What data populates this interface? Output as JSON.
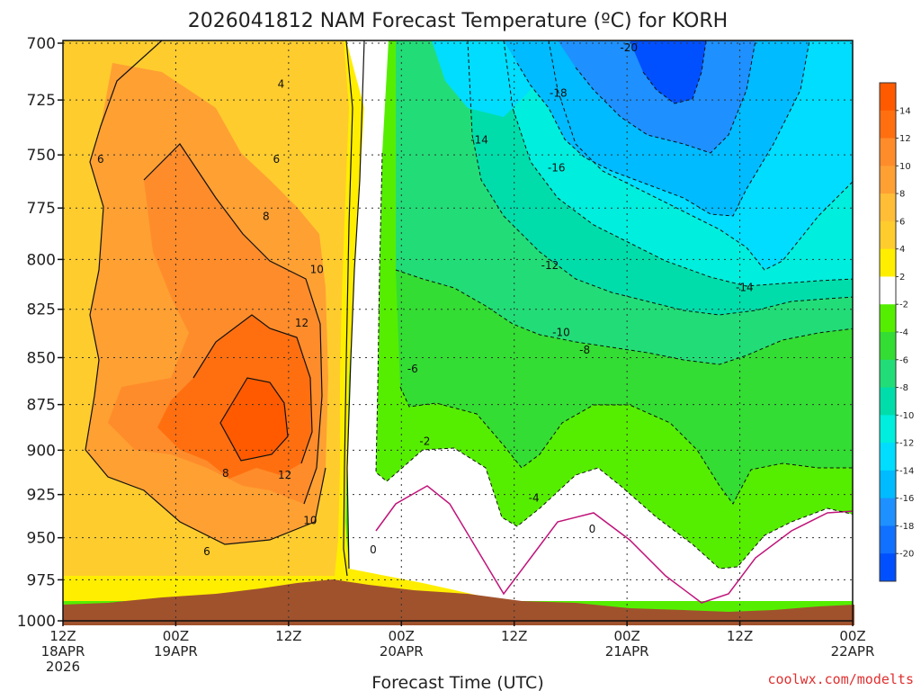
{
  "chart_data": {
    "type": "heatmap",
    "title": "2026041812 NAM Forecast Temperature (ºC) for KORH",
    "xlabel": "Forecast Time (UTC)",
    "ylabel": "",
    "x_ticks": [
      {
        "hours": 0,
        "lines": [
          "12Z",
          "18APR",
          "2026"
        ]
      },
      {
        "hours": 12,
        "lines": [
          "00Z",
          "19APR"
        ]
      },
      {
        "hours": 24,
        "lines": [
          "12Z"
        ]
      },
      {
        "hours": 36,
        "lines": [
          "00Z",
          "20APR"
        ]
      },
      {
        "hours": 48,
        "lines": [
          "12Z"
        ]
      },
      {
        "hours": 60,
        "lines": [
          "00Z",
          "21APR"
        ]
      },
      {
        "hours": 72,
        "lines": [
          "12Z"
        ]
      },
      {
        "hours": 84,
        "lines": [
          "00Z",
          "22APR"
        ]
      }
    ],
    "y_ticks": [
      700,
      725,
      750,
      775,
      800,
      825,
      850,
      875,
      900,
      925,
      950,
      975,
      1000
    ],
    "xlim": [
      0,
      84
    ],
    "ylim": [
      1000,
      700
    ],
    "y_scale": "log",
    "grid": true,
    "colorbar": {
      "placement": "right",
      "tick_labels": [
        "14",
        "12",
        "10",
        "8",
        "6",
        "4",
        "2",
        "-2",
        "-4",
        "-6",
        "-8",
        "-10",
        "-12",
        "-14",
        "-16",
        "-18",
        "-20"
      ],
      "bins": [
        {
          "range": [
            14,
            16
          ],
          "color": "#ff5a00"
        },
        {
          "range": [
            12,
            14
          ],
          "color": "#ff6f10"
        },
        {
          "range": [
            10,
            12
          ],
          "color": "#ff8c2a"
        },
        {
          "range": [
            8,
            10
          ],
          "color": "#ffa033"
        },
        {
          "range": [
            6,
            8
          ],
          "color": "#ffbe36"
        },
        {
          "range": [
            4,
            6
          ],
          "color": "#ffcc2e"
        },
        {
          "range": [
            2,
            4
          ],
          "color": "#ffee00"
        },
        {
          "range": [
            -2,
            2
          ],
          "color": "#ffffff"
        },
        {
          "range": [
            -4,
            -2
          ],
          "color": "#55ee00"
        },
        {
          "range": [
            -6,
            -4
          ],
          "color": "#33dd33"
        },
        {
          "range": [
            -8,
            -6
          ],
          "color": "#22dd77"
        },
        {
          "range": [
            -10,
            -8
          ],
          "color": "#00ddaa"
        },
        {
          "range": [
            -12,
            -10
          ],
          "color": "#00eedd"
        },
        {
          "range": [
            -14,
            -12
          ],
          "color": "#00ddff"
        },
        {
          "range": [
            -16,
            -14
          ],
          "color": "#00bbff"
        },
        {
          "range": [
            -18,
            -16
          ],
          "color": "#1e90ff"
        },
        {
          "range": [
            -20,
            -18
          ],
          "color": "#1070ff"
        },
        {
          "range": [
            -22,
            -20
          ],
          "color": "#0050ff"
        }
      ]
    },
    "contour_labels": [
      {
        "text": "4",
        "hours": 23.2,
        "hPa": 718
      },
      {
        "text": "6",
        "hours": 4,
        "hPa": 752
      },
      {
        "text": "6",
        "hours": 22.7,
        "hPa": 752
      },
      {
        "text": "8",
        "hours": 21.6,
        "hPa": 779
      },
      {
        "text": "10",
        "hours": 27,
        "hPa": 805
      },
      {
        "text": "12",
        "hours": 25.4,
        "hPa": 832
      },
      {
        "text": "8",
        "hours": 17.3,
        "hPa": 913
      },
      {
        "text": "12",
        "hours": 23.6,
        "hPa": 914
      },
      {
        "text": "10",
        "hours": 26.3,
        "hPa": 940
      },
      {
        "text": "6",
        "hours": 15.3,
        "hPa": 958
      },
      {
        "text": "0",
        "hours": 33,
        "hPa": 957
      },
      {
        "text": "-20",
        "hours": 60.2,
        "hPa": 702
      },
      {
        "text": "-18",
        "hours": 52.7,
        "hPa": 722
      },
      {
        "text": "-14",
        "hours": 44.3,
        "hPa": 743
      },
      {
        "text": "-16",
        "hours": 52.5,
        "hPa": 756
      },
      {
        "text": "-12",
        "hours": 51.8,
        "hPa": 803
      },
      {
        "text": "-14",
        "hours": 72.5,
        "hPa": 814
      },
      {
        "text": "-10",
        "hours": 53,
        "hPa": 837
      },
      {
        "text": "-8",
        "hours": 55.5,
        "hPa": 846
      },
      {
        "text": "-6",
        "hours": 37.2,
        "hPa": 856
      },
      {
        "text": "-2",
        "hours": 38.5,
        "hPa": 895
      },
      {
        "text": "-4",
        "hours": 50.1,
        "hPa": 927
      },
      {
        "text": "0",
        "hours": 56.3,
        "hPa": 945
      }
    ]
  },
  "credit": "coolwx.com/modelts"
}
